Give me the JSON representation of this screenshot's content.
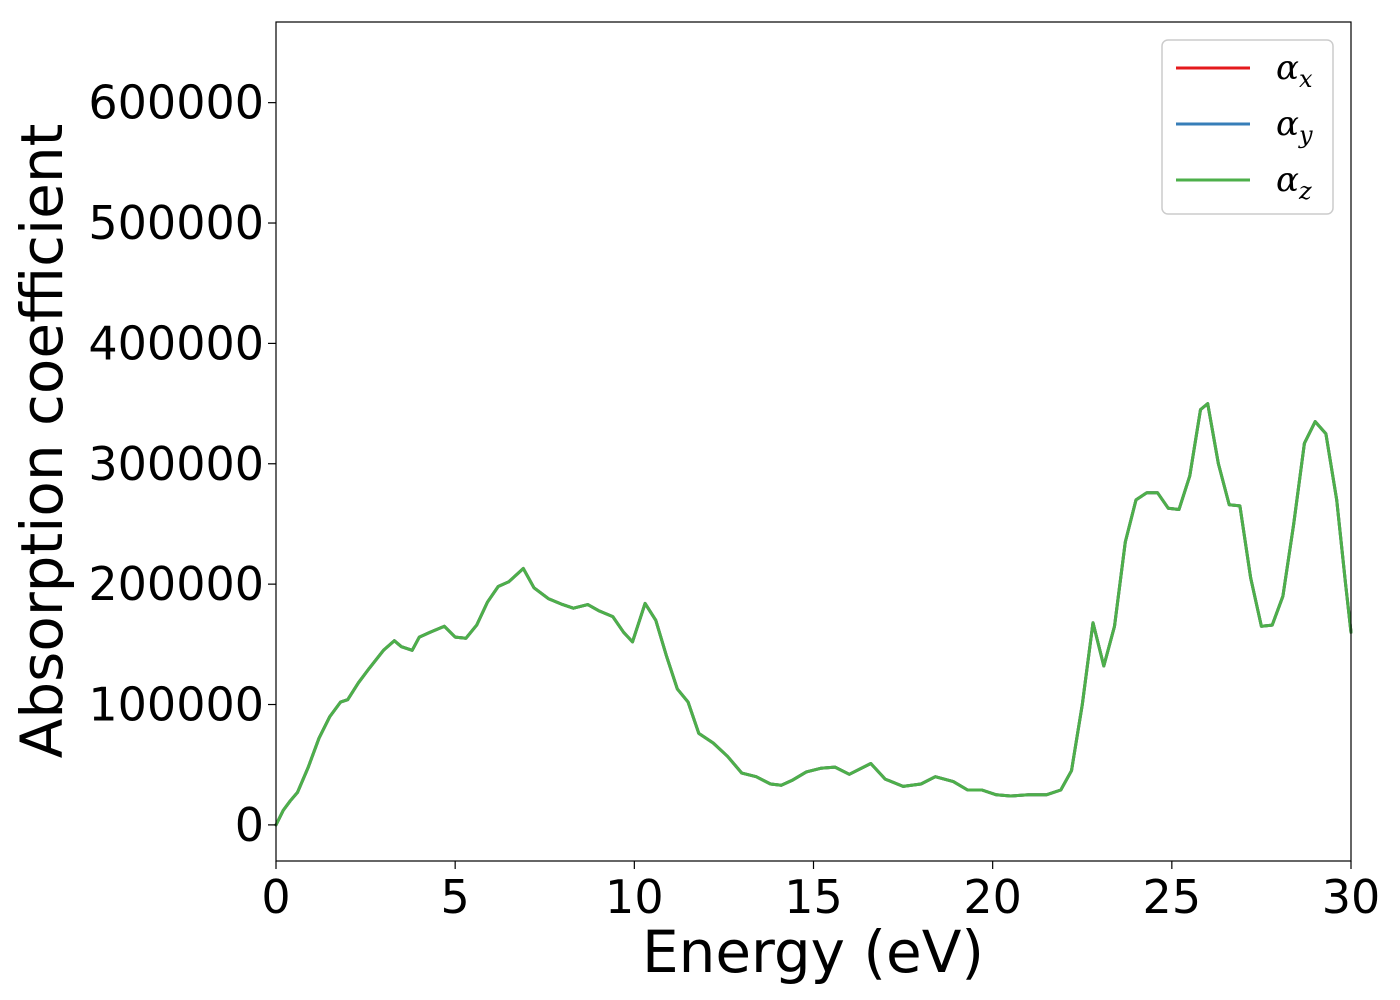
{
  "chart_data": {
    "type": "line",
    "xlabel": "Energy (eV)",
    "ylabel": "Absorption coefficient",
    "xlim": [
      0,
      30
    ],
    "ylim": [
      -30000,
      667000
    ],
    "x_ticks": [
      0,
      5,
      10,
      15,
      20,
      25,
      30
    ],
    "y_ticks": [
      0,
      100000,
      200000,
      300000,
      400000,
      500000,
      600000
    ],
    "grid": false,
    "legend_position": "top-right",
    "series": [
      {
        "name": "αx",
        "base": "α",
        "sub": "x",
        "color": "#e41a1c"
      },
      {
        "name": "αy",
        "base": "α",
        "sub": "y",
        "color": "#377eb8"
      },
      {
        "name": "αz",
        "base": "α",
        "sub": "z",
        "color": "#4daf4a"
      }
    ],
    "x": [
      0,
      0.2,
      0.4,
      0.6,
      0.9,
      1.2,
      1.5,
      1.8,
      2.0,
      2.3,
      2.6,
      3.0,
      3.3,
      3.5,
      3.8,
      4.0,
      4.3,
      4.7,
      5.0,
      5.3,
      5.6,
      5.9,
      6.2,
      6.5,
      6.9,
      7.2,
      7.6,
      8.0,
      8.3,
      8.7,
      9.0,
      9.4,
      9.7,
      9.95,
      10.3,
      10.6,
      10.9,
      11.2,
      11.5,
      11.8,
      12.2,
      12.6,
      13.0,
      13.4,
      13.8,
      14.1,
      14.4,
      14.8,
      15.2,
      15.6,
      16.0,
      16.6,
      17.0,
      17.5,
      18.0,
      18.4,
      18.9,
      19.3,
      19.7,
      20.1,
      20.5,
      21.0,
      21.5,
      21.9,
      22.2,
      22.5,
      22.8,
      23.1,
      23.4,
      23.7,
      24.0,
      24.3,
      24.6,
      24.9,
      25.2,
      25.5,
      25.8,
      26.0,
      26.3,
      26.6,
      26.9,
      27.2,
      27.5,
      27.8,
      28.1,
      28.4,
      28.7,
      29.0,
      29.3,
      29.6,
      29.85,
      30.0
    ],
    "values": [
      0,
      12000,
      20000,
      27000,
      48000,
      72000,
      90000,
      102000,
      104000,
      118000,
      130000,
      145000,
      153000,
      148000,
      145000,
      156000,
      160000,
      165000,
      156000,
      155000,
      166000,
      185000,
      198000,
      202000,
      213000,
      197000,
      188000,
      183000,
      180000,
      183000,
      178000,
      173000,
      160000,
      152000,
      184000,
      170000,
      140000,
      113000,
      102000,
      76000,
      68000,
      57000,
      43000,
      40000,
      34000,
      33000,
      37000,
      44000,
      47000,
      48000,
      42000,
      51000,
      38000,
      32000,
      34000,
      40000,
      36000,
      29000,
      29000,
      25000,
      24000,
      25000,
      25000,
      29000,
      45000,
      100000,
      168000,
      132000,
      165000,
      235000,
      270000,
      276000,
      276000,
      263000,
      262000,
      290000,
      345000,
      350000,
      300000,
      266000,
      265000,
      205000,
      165000,
      166000,
      190000,
      250000,
      317000,
      335000,
      325000,
      270000,
      200000,
      160000
    ]
  }
}
